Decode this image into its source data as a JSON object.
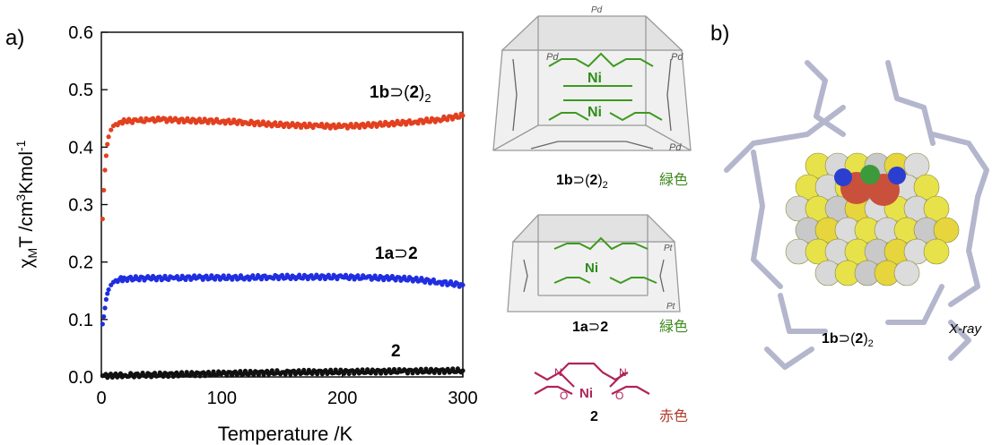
{
  "panels": {
    "a": "a)",
    "b": "b)"
  },
  "chart_data": {
    "type": "scatter",
    "xlabel": "Temperature /K",
    "ylabel_parts": {
      "chi": "χ",
      "sub": "M",
      "rest1": "T /cm",
      "sup1": "3",
      "rest2": "Kmol",
      "sup2": "-1"
    },
    "xlim": [
      0,
      300
    ],
    "ylim": [
      0,
      0.6
    ],
    "xticks": [
      0,
      100,
      200,
      300
    ],
    "yticks": [
      0.0,
      0.1,
      0.2,
      0.3,
      0.4,
      0.5,
      0.6
    ],
    "series": [
      {
        "name": "1b⊃(2)2",
        "color": "#e2401f",
        "points": [
          [
            1,
            0.275
          ],
          [
            2,
            0.325
          ],
          [
            3,
            0.36
          ],
          [
            4,
            0.385
          ],
          [
            5,
            0.405
          ],
          [
            6,
            0.418
          ],
          [
            8,
            0.43
          ],
          [
            10,
            0.437
          ],
          [
            12,
            0.44
          ],
          [
            15,
            0.443
          ],
          [
            20,
            0.445
          ],
          [
            30,
            0.446
          ],
          [
            40,
            0.447
          ],
          [
            50,
            0.448
          ],
          [
            60,
            0.447
          ],
          [
            80,
            0.446
          ],
          [
            100,
            0.445
          ],
          [
            120,
            0.443
          ],
          [
            140,
            0.44
          ],
          [
            160,
            0.438
          ],
          [
            180,
            0.437
          ],
          [
            200,
            0.436
          ],
          [
            220,
            0.438
          ],
          [
            240,
            0.441
          ],
          [
            260,
            0.444
          ],
          [
            280,
            0.448
          ],
          [
            300,
            0.455
          ]
        ]
      },
      {
        "name": "1a⊃2",
        "color": "#1f2ee0",
        "points": [
          [
            1,
            0.092
          ],
          [
            2,
            0.105
          ],
          [
            3,
            0.12
          ],
          [
            4,
            0.135
          ],
          [
            5,
            0.145
          ],
          [
            6,
            0.152
          ],
          [
            8,
            0.16
          ],
          [
            10,
            0.165
          ],
          [
            12,
            0.168
          ],
          [
            15,
            0.17
          ],
          [
            20,
            0.171
          ],
          [
            40,
            0.172
          ],
          [
            60,
            0.172
          ],
          [
            80,
            0.173
          ],
          [
            100,
            0.173
          ],
          [
            120,
            0.173
          ],
          [
            140,
            0.174
          ],
          [
            160,
            0.174
          ],
          [
            180,
            0.174
          ],
          [
            200,
            0.174
          ],
          [
            220,
            0.173
          ],
          [
            240,
            0.172
          ],
          [
            260,
            0.17
          ],
          [
            280,
            0.165
          ],
          [
            300,
            0.16
          ]
        ]
      },
      {
        "name": "2",
        "color": "#111111",
        "points": [
          [
            1,
            0.002
          ],
          [
            20,
            0.003
          ],
          [
            50,
            0.004
          ],
          [
            100,
            0.006
          ],
          [
            150,
            0.008
          ],
          [
            200,
            0.009
          ],
          [
            250,
            0.01
          ],
          [
            300,
            0.011
          ]
        ]
      }
    ],
    "series_labels": {
      "s1": {
        "bold": "1b",
        "op": "⊃(",
        "bold2": "2",
        "close": ")",
        "sub": "2"
      },
      "s2": {
        "bold": "1a",
        "op": "⊃",
        "bold2": "2"
      },
      "s3": {
        "bold": "2"
      }
    }
  },
  "structures": {
    "top": {
      "bold": "1b",
      "op": "⊃(",
      "bold2": "2",
      "close": ")",
      "sub": "2",
      "jp": "緑色",
      "jp_color": "#3d8a1e"
    },
    "middle": {
      "bold": "1a",
      "op": "⊃",
      "bold2": "2",
      "jp": "緑色",
      "jp_color": "#3d8a1e"
    },
    "bottom": {
      "bold": "2",
      "jp": "赤色",
      "jp_color": "#b03a2a"
    },
    "metal_pd": "Pd",
    "metal_pt": "Pt",
    "atom_ni": "Ni",
    "atom_n": "N",
    "atom_o": "O"
  },
  "xray": {
    "label": {
      "bold": "1b",
      "op": "⊃(",
      "bold2": "2",
      "close": ")",
      "sub": "2"
    },
    "tag": "X-ray"
  }
}
